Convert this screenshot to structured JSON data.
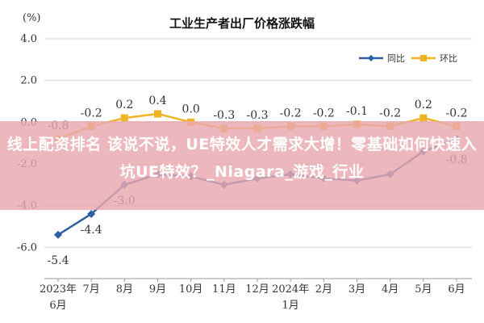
{
  "chart_data": {
    "type": "line",
    "title": "工业生产者出厂价格涨跌幅",
    "unit_label": "(%)",
    "categories": [
      "2023年\n6月",
      "7月",
      "8月",
      "9月",
      "10月",
      "11月",
      "12月",
      "2024年\n1月",
      "2月",
      "3月",
      "4月",
      "5月",
      "6月"
    ],
    "series": [
      {
        "name": "同比",
        "color": "#2e5fa3",
        "values": [
          -5.4,
          -4.4,
          -3.0,
          -2.5,
          -2.6,
          -3.0,
          -2.7,
          -2.5,
          -2.7,
          -2.8,
          -2.5,
          -1.4,
          -0.8
        ],
        "labels": [
          "-5.4",
          "-4.4",
          "-3.0",
          "",
          "",
          "",
          "",
          "",
          "",
          "",
          "",
          "",
          "-0.8"
        ]
      },
      {
        "name": "环比",
        "color": "#f0b323",
        "values": [
          -0.8,
          -0.2,
          0.2,
          0.4,
          0.0,
          -0.3,
          -0.3,
          -0.2,
          -0.2,
          -0.1,
          -0.2,
          0.2,
          -0.2
        ],
        "labels": [
          "-0.8",
          "-0.2",
          "0.2",
          "0.4",
          "0.0",
          "-0.3",
          "-0.3",
          "-0.2",
          "-0.2",
          "-0.1",
          "-0.2",
          "0.2",
          "-0.2"
        ]
      }
    ],
    "y_ticks": [
      "4.0",
      "2.0",
      "0.0",
      "-2.0",
      "-4.0",
      "-6.0"
    ],
    "ylim": [
      -7.5,
      4.0
    ],
    "grid": true,
    "legend_position": "top-right"
  },
  "overlay": {
    "banner_text": "线上配资排名 该说不说，UE特效人才需求大增！零基础如何快速入坑UE特效？_Niagara_游戏_行业"
  }
}
